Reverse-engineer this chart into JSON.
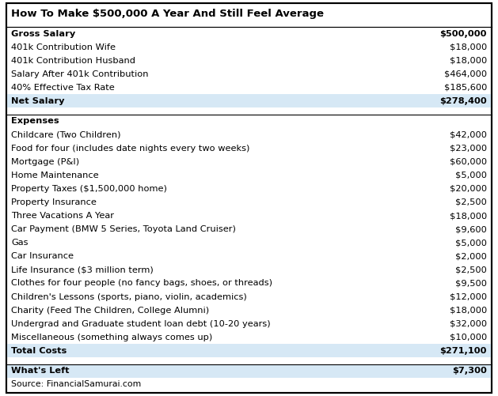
{
  "title": "How To Make $500,000 A Year And Still Feel Average",
  "rows": [
    {
      "label": "Gross Salary",
      "value": "$500,000",
      "bold": true,
      "highlight": false,
      "top_border": true,
      "bottom_border": false,
      "type": "data"
    },
    {
      "label": "401k Contribution Wife",
      "value": "$18,000",
      "bold": false,
      "highlight": false,
      "top_border": false,
      "bottom_border": false,
      "type": "data"
    },
    {
      "label": "401k Contribution Husband",
      "value": "$18,000",
      "bold": false,
      "highlight": false,
      "top_border": false,
      "bottom_border": false,
      "type": "data"
    },
    {
      "label": "Salary After 401k Contribution",
      "value": "$464,000",
      "bold": false,
      "highlight": false,
      "top_border": false,
      "bottom_border": false,
      "type": "data"
    },
    {
      "label": "40% Effective Tax Rate",
      "value": "$185,600",
      "bold": false,
      "highlight": false,
      "top_border": false,
      "bottom_border": false,
      "type": "data"
    },
    {
      "label": "Net Salary",
      "value": "$278,400",
      "bold": true,
      "highlight": true,
      "top_border": false,
      "bottom_border": false,
      "type": "data"
    },
    {
      "label": "",
      "value": "",
      "bold": false,
      "highlight": false,
      "top_border": false,
      "bottom_border": false,
      "type": "blank"
    },
    {
      "label": "Expenses",
      "value": "",
      "bold": true,
      "highlight": false,
      "top_border": true,
      "bottom_border": false,
      "type": "data"
    },
    {
      "label": "Childcare (Two Children)",
      "value": "$42,000",
      "bold": false,
      "highlight": false,
      "top_border": false,
      "bottom_border": false,
      "type": "data"
    },
    {
      "label": "Food for four (includes date nights every two weeks)",
      "value": "$23,000",
      "bold": false,
      "highlight": false,
      "top_border": false,
      "bottom_border": false,
      "type": "data"
    },
    {
      "label": "Mortgage (P&I)",
      "value": "$60,000",
      "bold": false,
      "highlight": false,
      "top_border": false,
      "bottom_border": false,
      "type": "data"
    },
    {
      "label": "Home Maintenance",
      "value": "$5,000",
      "bold": false,
      "highlight": false,
      "top_border": false,
      "bottom_border": false,
      "type": "data"
    },
    {
      "label": "Property Taxes ($1,500,000 home)",
      "value": "$20,000",
      "bold": false,
      "highlight": false,
      "top_border": false,
      "bottom_border": false,
      "type": "data"
    },
    {
      "label": "Property Insurance",
      "value": "$2,500",
      "bold": false,
      "highlight": false,
      "top_border": false,
      "bottom_border": false,
      "type": "data"
    },
    {
      "label": "Three Vacations A Year",
      "value": "$18,000",
      "bold": false,
      "highlight": false,
      "top_border": false,
      "bottom_border": false,
      "type": "data"
    },
    {
      "label": "Car Payment (BMW 5 Series, Toyota Land Cruiser)",
      "value": "$9,600",
      "bold": false,
      "highlight": false,
      "top_border": false,
      "bottom_border": false,
      "type": "data"
    },
    {
      "label": "Gas",
      "value": "$5,000",
      "bold": false,
      "highlight": false,
      "top_border": false,
      "bottom_border": false,
      "type": "data"
    },
    {
      "label": "Car Insurance",
      "value": "$2,000",
      "bold": false,
      "highlight": false,
      "top_border": false,
      "bottom_border": false,
      "type": "data"
    },
    {
      "label": "Life Insurance ($3 million term)",
      "value": "$2,500",
      "bold": false,
      "highlight": false,
      "top_border": false,
      "bottom_border": false,
      "type": "data"
    },
    {
      "label": "Clothes for four people (no fancy bags, shoes, or threads)",
      "value": "$9,500",
      "bold": false,
      "highlight": false,
      "top_border": false,
      "bottom_border": false,
      "type": "data"
    },
    {
      "label": "Children's Lessons (sports, piano, violin, academics)",
      "value": "$12,000",
      "bold": false,
      "highlight": false,
      "top_border": false,
      "bottom_border": false,
      "type": "data"
    },
    {
      "label": "Charity (Feed The Children, College Alumni)",
      "value": "$18,000",
      "bold": false,
      "highlight": false,
      "top_border": false,
      "bottom_border": false,
      "type": "data"
    },
    {
      "label": "Undergrad and Graduate student loan debt (10-20 years)",
      "value": "$32,000",
      "bold": false,
      "highlight": false,
      "top_border": false,
      "bottom_border": false,
      "type": "data"
    },
    {
      "label": "Miscellaneous (something always comes up)",
      "value": "$10,000",
      "bold": false,
      "highlight": false,
      "top_border": false,
      "bottom_border": false,
      "type": "data"
    },
    {
      "label": "Total Costs",
      "value": "$271,100",
      "bold": true,
      "highlight": true,
      "top_border": false,
      "bottom_border": false,
      "type": "data"
    },
    {
      "label": "",
      "value": "",
      "bold": false,
      "highlight": false,
      "top_border": false,
      "bottom_border": false,
      "type": "blank"
    },
    {
      "label": "What's Left",
      "value": "$7,300",
      "bold": true,
      "highlight": true,
      "top_border": true,
      "bottom_border": false,
      "type": "data"
    },
    {
      "label": "Source: FinancialSamurai.com",
      "value": "",
      "bold": false,
      "highlight": false,
      "top_border": false,
      "bottom_border": false,
      "type": "source"
    }
  ],
  "highlight_color": "#d6e8f5",
  "border_color": "#000000",
  "bg_color": "#ffffff",
  "text_color": "#000000",
  "title_fontsize": 9.5,
  "body_fontsize": 8.2,
  "source_fontsize": 7.8
}
